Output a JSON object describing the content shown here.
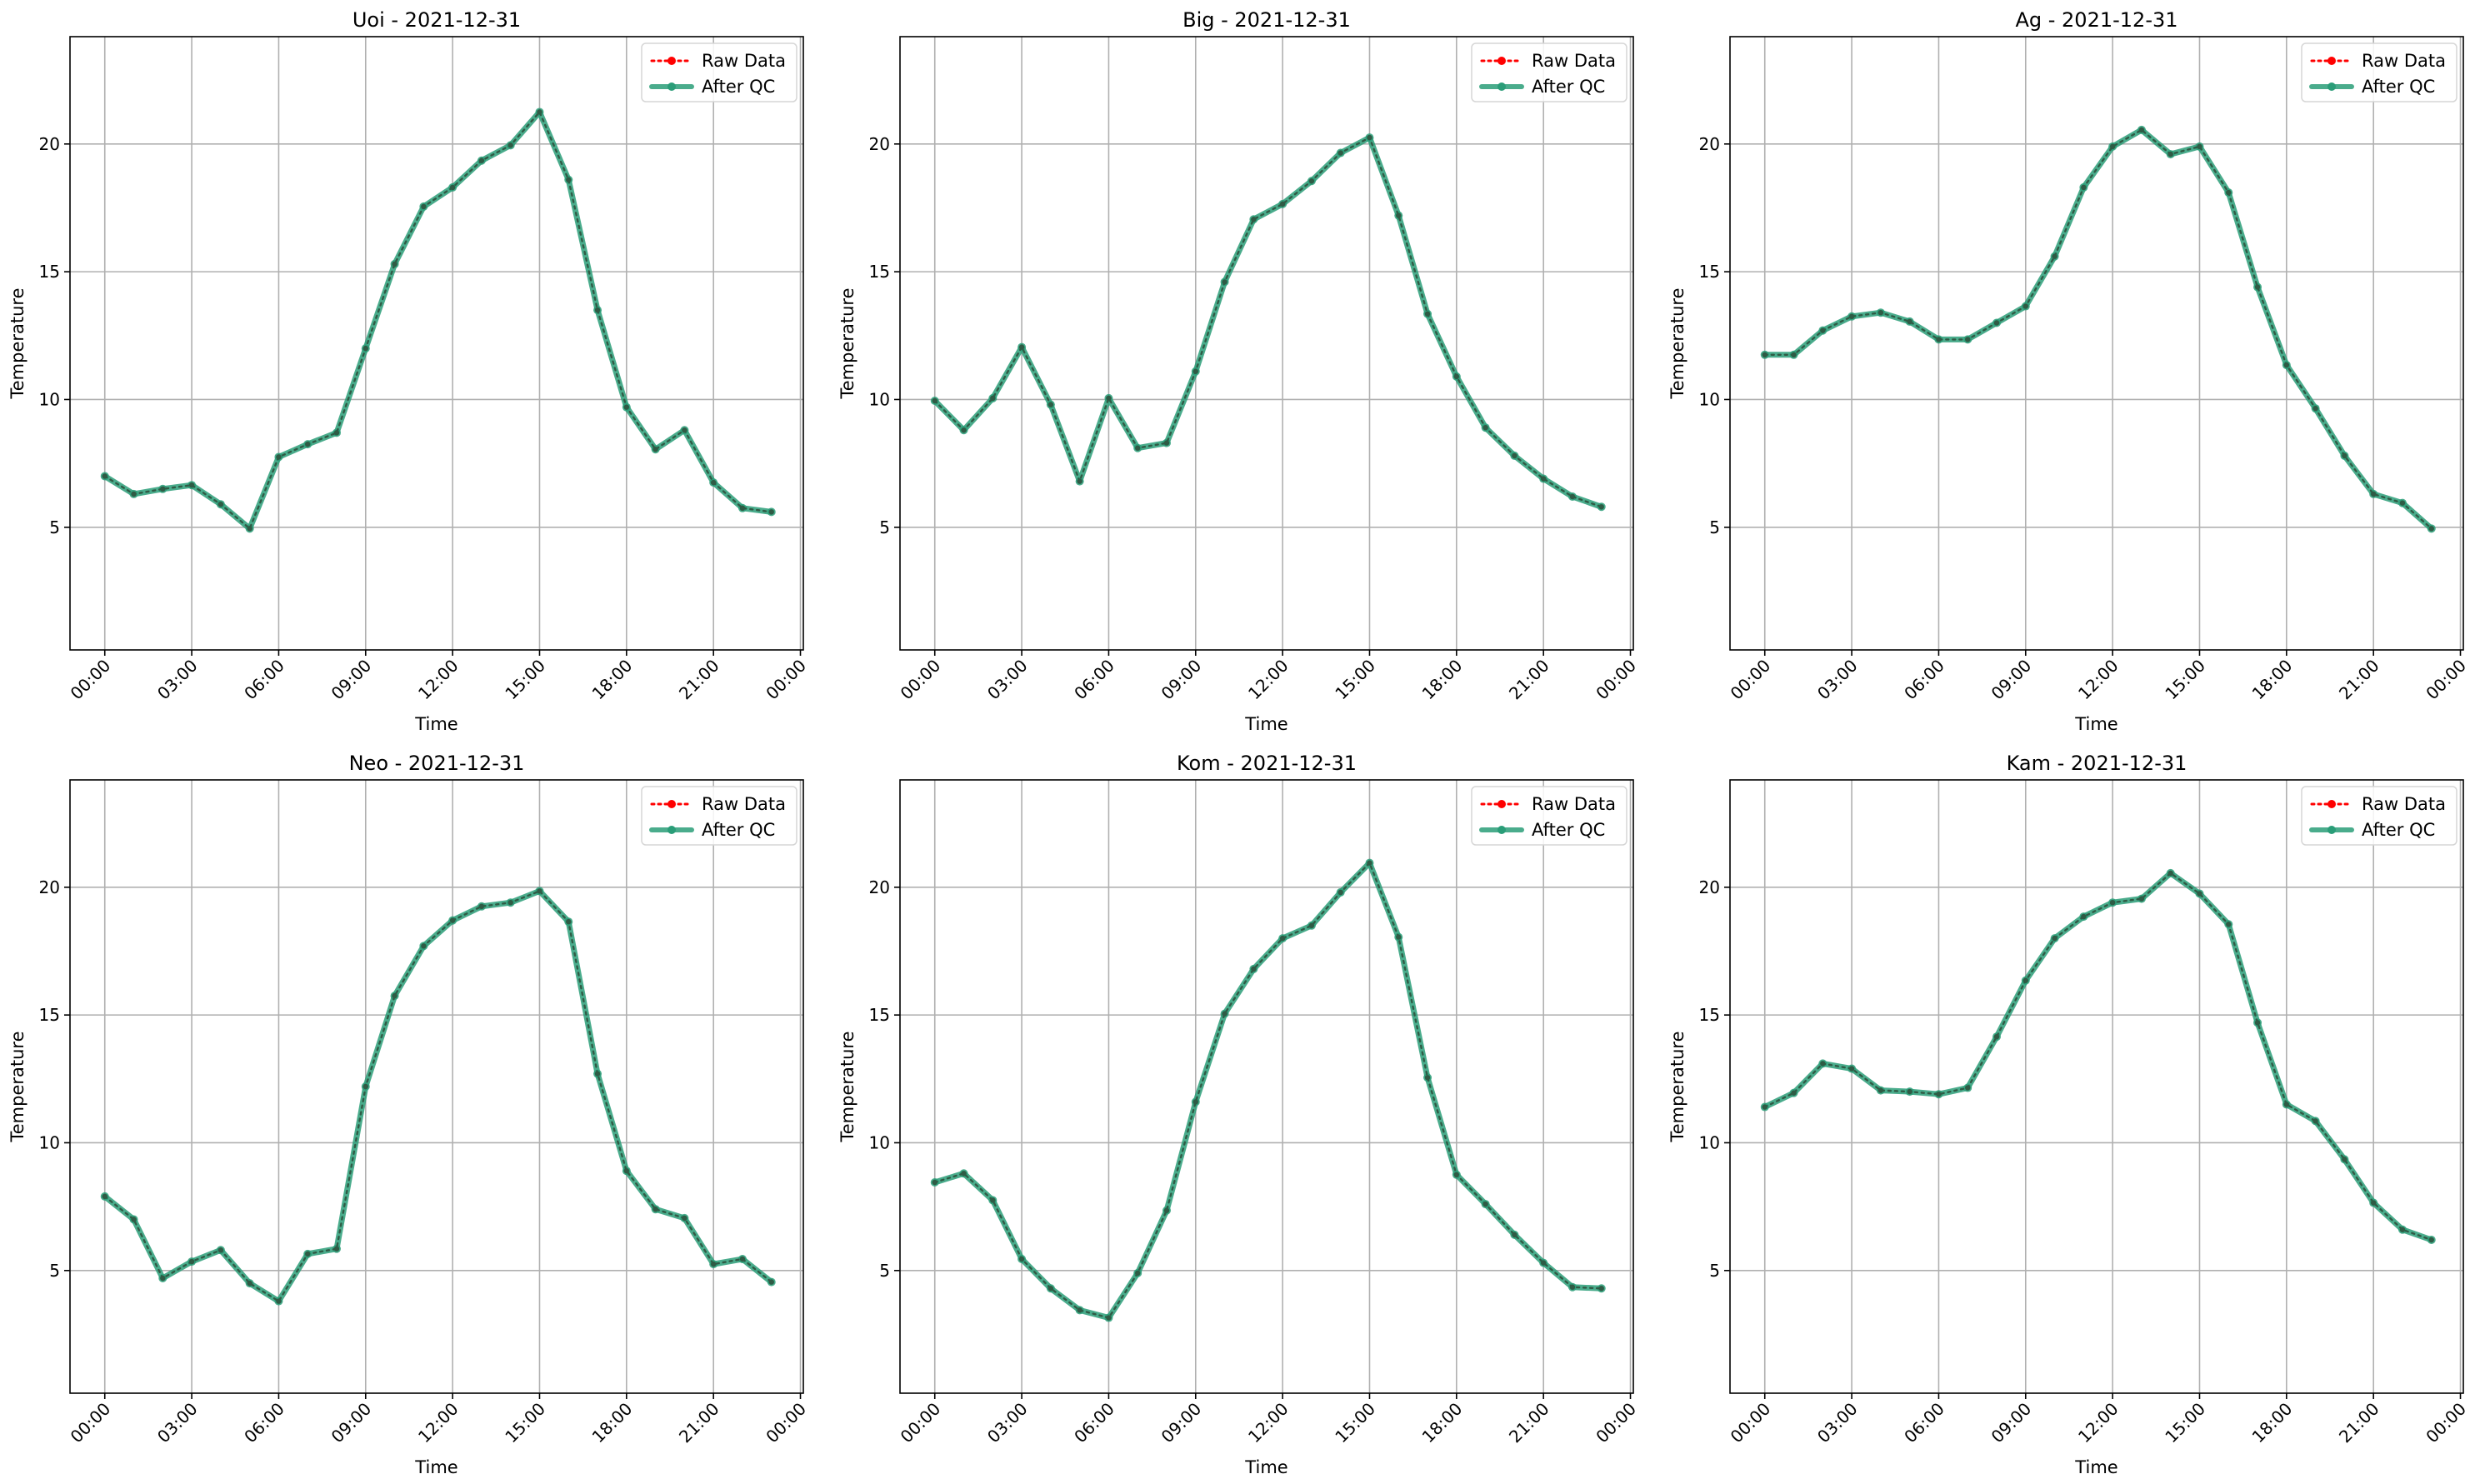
{
  "chart_data": [
    {
      "type": "line",
      "title": "Uoi - 2021-12-31",
      "xlabel": "Time",
      "ylabel": "Temperature",
      "ylim": [
        0.2,
        24.2
      ],
      "yticks": [
        5,
        10,
        15,
        20
      ],
      "xticks": [
        "00:00",
        "03:00",
        "06:00",
        "09:00",
        "12:00",
        "15:00",
        "18:00",
        "21:00",
        "00:00"
      ],
      "xlim_hours": [
        -1.2,
        24.1
      ],
      "grid": true,
      "legend": "top-right",
      "x_hours": [
        0,
        1,
        2,
        3,
        4,
        5,
        6,
        7,
        8,
        9,
        10,
        11,
        12,
        13,
        14,
        15,
        16,
        17,
        18,
        19,
        20,
        21,
        22,
        23
      ],
      "series": [
        {
          "name": "Raw Data",
          "color": "#ff0000",
          "values": [
            7.0,
            6.3,
            6.5,
            6.65,
            5.9,
            4.95,
            7.75,
            8.25,
            8.7,
            12.0,
            15.3,
            17.55,
            18.3,
            19.35,
            19.95,
            21.25,
            18.6,
            13.5,
            9.7,
            8.05,
            8.8,
            6.75,
            5.75,
            5.6
          ]
        },
        {
          "name": "After QC",
          "color": "#2a9d78",
          "values": [
            7.0,
            6.3,
            6.5,
            6.65,
            5.9,
            4.95,
            7.75,
            8.25,
            8.7,
            12.0,
            15.3,
            17.55,
            18.3,
            19.35,
            19.95,
            21.25,
            18.6,
            13.5,
            9.7,
            8.05,
            8.8,
            6.75,
            5.75,
            5.6
          ]
        }
      ]
    },
    {
      "type": "line",
      "title": "Big - 2021-12-31",
      "xlabel": "Time",
      "ylabel": "Temperature",
      "ylim": [
        0.2,
        24.2
      ],
      "yticks": [
        5,
        10,
        15,
        20
      ],
      "xticks": [
        "00:00",
        "03:00",
        "06:00",
        "09:00",
        "12:00",
        "15:00",
        "18:00",
        "21:00",
        "00:00"
      ],
      "xlim_hours": [
        -1.2,
        24.1
      ],
      "grid": true,
      "legend": "top-right",
      "x_hours": [
        0,
        1,
        2,
        3,
        4,
        5,
        6,
        7,
        8,
        9,
        10,
        11,
        12,
        13,
        14,
        15,
        16,
        17,
        18,
        19,
        20,
        21,
        22,
        23
      ],
      "series": [
        {
          "name": "Raw Data",
          "color": "#ff0000",
          "values": [
            9.95,
            8.8,
            10.05,
            12.05,
            9.8,
            6.8,
            10.05,
            8.1,
            8.3,
            11.1,
            14.6,
            17.05,
            17.65,
            18.55,
            19.65,
            20.25,
            17.2,
            13.35,
            10.9,
            8.9,
            7.8,
            6.9,
            6.2,
            5.8
          ]
        },
        {
          "name": "After QC",
          "color": "#2a9d78",
          "values": [
            9.95,
            8.8,
            10.05,
            12.05,
            9.8,
            6.8,
            10.05,
            8.1,
            8.3,
            11.1,
            14.6,
            17.05,
            17.65,
            18.55,
            19.65,
            20.25,
            17.2,
            13.35,
            10.9,
            8.9,
            7.8,
            6.9,
            6.2,
            5.8
          ]
        }
      ]
    },
    {
      "type": "line",
      "title": "Ag - 2021-12-31",
      "xlabel": "Time",
      "ylabel": "Temperature",
      "ylim": [
        0.2,
        24.2
      ],
      "yticks": [
        5,
        10,
        15,
        20
      ],
      "xticks": [
        "00:00",
        "03:00",
        "06:00",
        "09:00",
        "12:00",
        "15:00",
        "18:00",
        "21:00",
        "00:00"
      ],
      "xlim_hours": [
        -1.2,
        24.1
      ],
      "grid": true,
      "legend": "top-right",
      "x_hours": [
        0,
        1,
        2,
        3,
        4,
        5,
        6,
        7,
        8,
        9,
        10,
        11,
        12,
        13,
        14,
        15,
        16,
        17,
        18,
        19,
        20,
        21,
        22,
        23
      ],
      "series": [
        {
          "name": "Raw Data",
          "color": "#ff0000",
          "values": [
            11.75,
            11.75,
            12.7,
            13.25,
            13.4,
            13.05,
            12.35,
            12.35,
            13.0,
            13.65,
            15.6,
            18.3,
            19.9,
            20.55,
            19.6,
            19.9,
            18.1,
            14.4,
            11.35,
            9.65,
            7.8,
            6.3,
            5.95,
            4.95
          ]
        },
        {
          "name": "After QC",
          "color": "#2a9d78",
          "values": [
            11.75,
            11.75,
            12.7,
            13.25,
            13.4,
            13.05,
            12.35,
            12.35,
            13.0,
            13.65,
            15.6,
            18.3,
            19.9,
            20.55,
            19.6,
            19.9,
            18.1,
            14.4,
            11.35,
            9.65,
            7.8,
            6.3,
            5.95,
            4.95
          ]
        }
      ]
    },
    {
      "type": "line",
      "title": "Neo - 2021-12-31",
      "xlabel": "Time",
      "ylabel": "Temperature",
      "ylim": [
        0.2,
        24.2
      ],
      "yticks": [
        5,
        10,
        15,
        20
      ],
      "xticks": [
        "00:00",
        "03:00",
        "06:00",
        "09:00",
        "12:00",
        "15:00",
        "18:00",
        "21:00",
        "00:00"
      ],
      "xlim_hours": [
        -1.2,
        24.1
      ],
      "grid": true,
      "legend": "top-right",
      "x_hours": [
        0,
        1,
        2,
        3,
        4,
        5,
        6,
        7,
        8,
        9,
        10,
        11,
        12,
        13,
        14,
        15,
        16,
        17,
        18,
        19,
        20,
        21,
        22,
        23
      ],
      "series": [
        {
          "name": "Raw Data",
          "color": "#ff0000",
          "values": [
            7.9,
            7.0,
            4.7,
            5.35,
            5.8,
            4.5,
            3.8,
            5.65,
            5.85,
            12.2,
            15.75,
            17.7,
            18.7,
            19.25,
            19.4,
            19.85,
            18.65,
            12.7,
            8.9,
            7.4,
            7.05,
            5.25,
            5.45,
            4.55
          ]
        },
        {
          "name": "After QC",
          "color": "#2a9d78",
          "values": [
            7.9,
            7.0,
            4.7,
            5.35,
            5.8,
            4.5,
            3.8,
            5.65,
            5.85,
            12.2,
            15.75,
            17.7,
            18.7,
            19.25,
            19.4,
            19.85,
            18.65,
            12.7,
            8.9,
            7.4,
            7.05,
            5.25,
            5.45,
            4.55
          ]
        }
      ]
    },
    {
      "type": "line",
      "title": "Kom - 2021-12-31",
      "xlabel": "Time",
      "ylabel": "Temperature",
      "ylim": [
        0.2,
        24.2
      ],
      "yticks": [
        5,
        10,
        15,
        20
      ],
      "xticks": [
        "00:00",
        "03:00",
        "06:00",
        "09:00",
        "12:00",
        "15:00",
        "18:00",
        "21:00",
        "00:00"
      ],
      "xlim_hours": [
        -1.2,
        24.1
      ],
      "grid": true,
      "legend": "top-right",
      "x_hours": [
        0,
        1,
        2,
        3,
        4,
        5,
        6,
        7,
        8,
        9,
        10,
        11,
        12,
        13,
        14,
        15,
        16,
        17,
        18,
        19,
        20,
        21,
        22,
        23
      ],
      "series": [
        {
          "name": "Raw Data",
          "color": "#ff0000",
          "values": [
            8.45,
            8.8,
            7.75,
            5.45,
            4.3,
            3.45,
            3.15,
            4.9,
            7.35,
            11.6,
            15.05,
            16.8,
            18.0,
            18.5,
            19.8,
            20.95,
            18.05,
            12.55,
            8.75,
            7.6,
            6.4,
            5.3,
            4.35,
            4.3
          ]
        },
        {
          "name": "After QC",
          "color": "#2a9d78",
          "values": [
            8.45,
            8.8,
            7.75,
            5.45,
            4.3,
            3.45,
            3.15,
            4.9,
            7.35,
            11.6,
            15.05,
            16.8,
            18.0,
            18.5,
            19.8,
            20.95,
            18.05,
            12.55,
            8.75,
            7.6,
            6.4,
            5.3,
            4.35,
            4.3
          ]
        }
      ]
    },
    {
      "type": "line",
      "title": "Kam - 2021-12-31",
      "xlabel": "Time",
      "ylabel": "Temperature",
      "ylim": [
        0.2,
        24.2
      ],
      "yticks": [
        5,
        10,
        15,
        20
      ],
      "xticks": [
        "00:00",
        "03:00",
        "06:00",
        "09:00",
        "12:00",
        "15:00",
        "18:00",
        "21:00",
        "00:00"
      ],
      "xlim_hours": [
        -1.2,
        24.1
      ],
      "grid": true,
      "legend": "top-right",
      "x_hours": [
        0,
        1,
        2,
        3,
        4,
        5,
        6,
        7,
        8,
        9,
        10,
        11,
        12,
        13,
        14,
        15,
        16,
        17,
        18,
        19,
        20,
        21,
        22,
        23
      ],
      "series": [
        {
          "name": "Raw Data",
          "color": "#ff0000",
          "values": [
            11.4,
            11.95,
            13.1,
            12.9,
            12.05,
            12.0,
            11.9,
            12.15,
            14.15,
            16.35,
            18.0,
            18.85,
            19.4,
            19.55,
            20.55,
            19.75,
            18.55,
            14.7,
            11.5,
            10.85,
            9.35,
            7.65,
            6.6,
            6.2
          ]
        },
        {
          "name": "After QC",
          "color": "#2a9d78",
          "values": [
            11.4,
            11.95,
            13.1,
            12.9,
            12.05,
            12.0,
            11.9,
            12.15,
            14.15,
            16.35,
            18.0,
            18.85,
            19.4,
            19.55,
            20.55,
            19.75,
            18.55,
            14.7,
            11.5,
            10.85,
            9.35,
            7.65,
            6.6,
            6.2
          ]
        }
      ]
    }
  ]
}
